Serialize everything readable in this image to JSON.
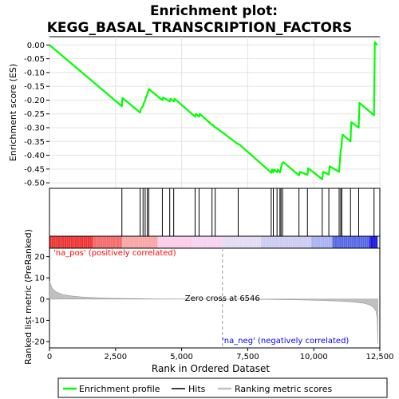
{
  "chart_data": {
    "type": "line",
    "title": "Enrichment plot:\nKEGG_BASAL_TRANSCRIPTION_FACTORS",
    "xlabel": "Rank in Ordered Dataset",
    "xlim": [
      0,
      12500
    ],
    "x_ticks": [
      0,
      2500,
      5000,
      7500,
      10000,
      12500
    ],
    "x_tick_labels": [
      "0",
      "2,500",
      "5,000",
      "7,500",
      "10,000",
      "12,500"
    ],
    "top_panel": {
      "ylabel": "Enrichment score (ES)",
      "ylim": [
        -0.52,
        0.03
      ],
      "y_ticks": [
        0.0,
        -0.05,
        -0.1,
        -0.15,
        -0.2,
        -0.25,
        -0.3,
        -0.35,
        -0.4,
        -0.45,
        -0.5
      ],
      "y_tick_labels": [
        "0.00",
        "-0.05",
        "-0.10",
        "-0.15",
        "-0.20",
        "-0.25",
        "-0.30",
        "-0.35",
        "-0.40",
        "-0.45",
        "-0.50"
      ],
      "series": [
        {
          "name": "Enrichment profile",
          "color": "#00ff00",
          "x": [
            0,
            2740,
            2760,
            3430,
            3460,
            3540,
            3570,
            3620,
            3650,
            3700,
            3730,
            3760,
            4270,
            4300,
            4550,
            4580,
            4700,
            4730,
            5510,
            5540,
            5660,
            5690,
            6150,
            6180,
            6270,
            6300,
            7140,
            7170,
            8390,
            8420,
            8470,
            8500,
            8610,
            8640,
            8720,
            8750,
            8760,
            8790,
            8820,
            8850,
            9440,
            9470,
            9760,
            9790,
            10320,
            10350,
            10570,
            10600,
            10960,
            10990,
            11020,
            11050,
            11060,
            11090,
            11390,
            11420,
            11700,
            11730,
            12280,
            12310,
            12400
          ],
          "y": [
            0.0,
            -0.222,
            -0.192,
            -0.245,
            -0.232,
            -0.222,
            -0.212,
            -0.201,
            -0.19,
            -0.18,
            -0.17,
            -0.16,
            -0.2,
            -0.19,
            -0.205,
            -0.195,
            -0.205,
            -0.195,
            -0.26,
            -0.25,
            -0.26,
            -0.25,
            -0.29,
            -0.29,
            -0.3,
            -0.3,
            -0.36,
            -0.36,
            -0.463,
            -0.452,
            -0.462,
            -0.452,
            -0.462,
            -0.452,
            -0.462,
            -0.452,
            -0.445,
            -0.435,
            -0.428,
            -0.425,
            -0.473,
            -0.46,
            -0.471,
            -0.447,
            -0.487,
            -0.46,
            -0.47,
            -0.44,
            -0.46,
            -0.42,
            -0.38,
            -0.37,
            -0.35,
            -0.325,
            -0.35,
            -0.28,
            -0.3,
            -0.21,
            -0.255,
            0.01,
            0.0
          ]
        }
      ]
    },
    "hits_panel": {
      "series_name": "Hits",
      "hit_ranks": [
        2740,
        3430,
        3540,
        3620,
        3700,
        3760,
        4270,
        4550,
        4700,
        5510,
        5660,
        6150,
        6270,
        7140,
        8390,
        8470,
        8610,
        8720,
        8760,
        8820,
        9440,
        9760,
        10320,
        10570,
        10960,
        11020,
        11060,
        11390,
        11700,
        12280
      ]
    },
    "ranking_panel": {
      "ylabel": "Ranked list metric (PreRanked)",
      "series_name": "Ranking metric scores",
      "ylim": [
        -23,
        24
      ],
      "y_ticks": [
        20,
        10,
        0,
        -10,
        -20
      ],
      "y_tick_labels": [
        "20",
        "10",
        "0",
        "-10",
        "-20"
      ],
      "x": [
        0,
        100,
        250,
        500,
        800,
        1200,
        1600,
        2000,
        2500,
        3000,
        4000,
        5000,
        6000,
        6546,
        7500,
        8500,
        9500,
        10000,
        10500,
        11000,
        11500,
        11900,
        12100,
        12250,
        12350,
        12400,
        12420
      ],
      "y": [
        8.5,
        5.2,
        3.4,
        2.2,
        1.5,
        1.05,
        0.75,
        0.55,
        0.38,
        0.26,
        0.12,
        0.05,
        0.01,
        0.0,
        -0.06,
        -0.18,
        -0.35,
        -0.5,
        -0.7,
        -0.95,
        -1.35,
        -2.0,
        -2.7,
        -3.8,
        -5.5,
        -9.0,
        -21.0
      ],
      "zero_cross_label": "Zero cross at 6546",
      "zero_cross_rank": 6546,
      "pos_label": "'na_pos' (positively correlated)",
      "neg_label": "'na_neg' (negatively correlated)",
      "pos_color": "#ff0000",
      "neg_color": "#0000ff"
    },
    "legend": {
      "placement": "bottom",
      "items": [
        {
          "label": "Enrichment profile",
          "color": "#00ff00"
        },
        {
          "label": "Hits",
          "color": "#000000"
        },
        {
          "label": "Ranking metric scores",
          "color": "#c0c0c0"
        }
      ]
    },
    "color_bar": {
      "stops": [
        {
          "rank": 0,
          "color": "#ee3333"
        },
        {
          "rank": 1650,
          "color": "#f36a6a"
        },
        {
          "rank": 2750,
          "color": "#f7a5a5"
        },
        {
          "rank": 4100,
          "color": "#fbcde8"
        },
        {
          "rank": 5400,
          "color": "#f8d2f0"
        },
        {
          "rank": 6546,
          "color": "#e4dbf3"
        },
        {
          "rank": 8000,
          "color": "#ccccf3"
        },
        {
          "rank": 9900,
          "color": "#aab1f0"
        },
        {
          "rank": 10700,
          "color": "#5566e6"
        },
        {
          "rank": 12100,
          "color": "#1515dd"
        },
        {
          "rank": 12420,
          "color": "#1515dd"
        }
      ]
    }
  }
}
